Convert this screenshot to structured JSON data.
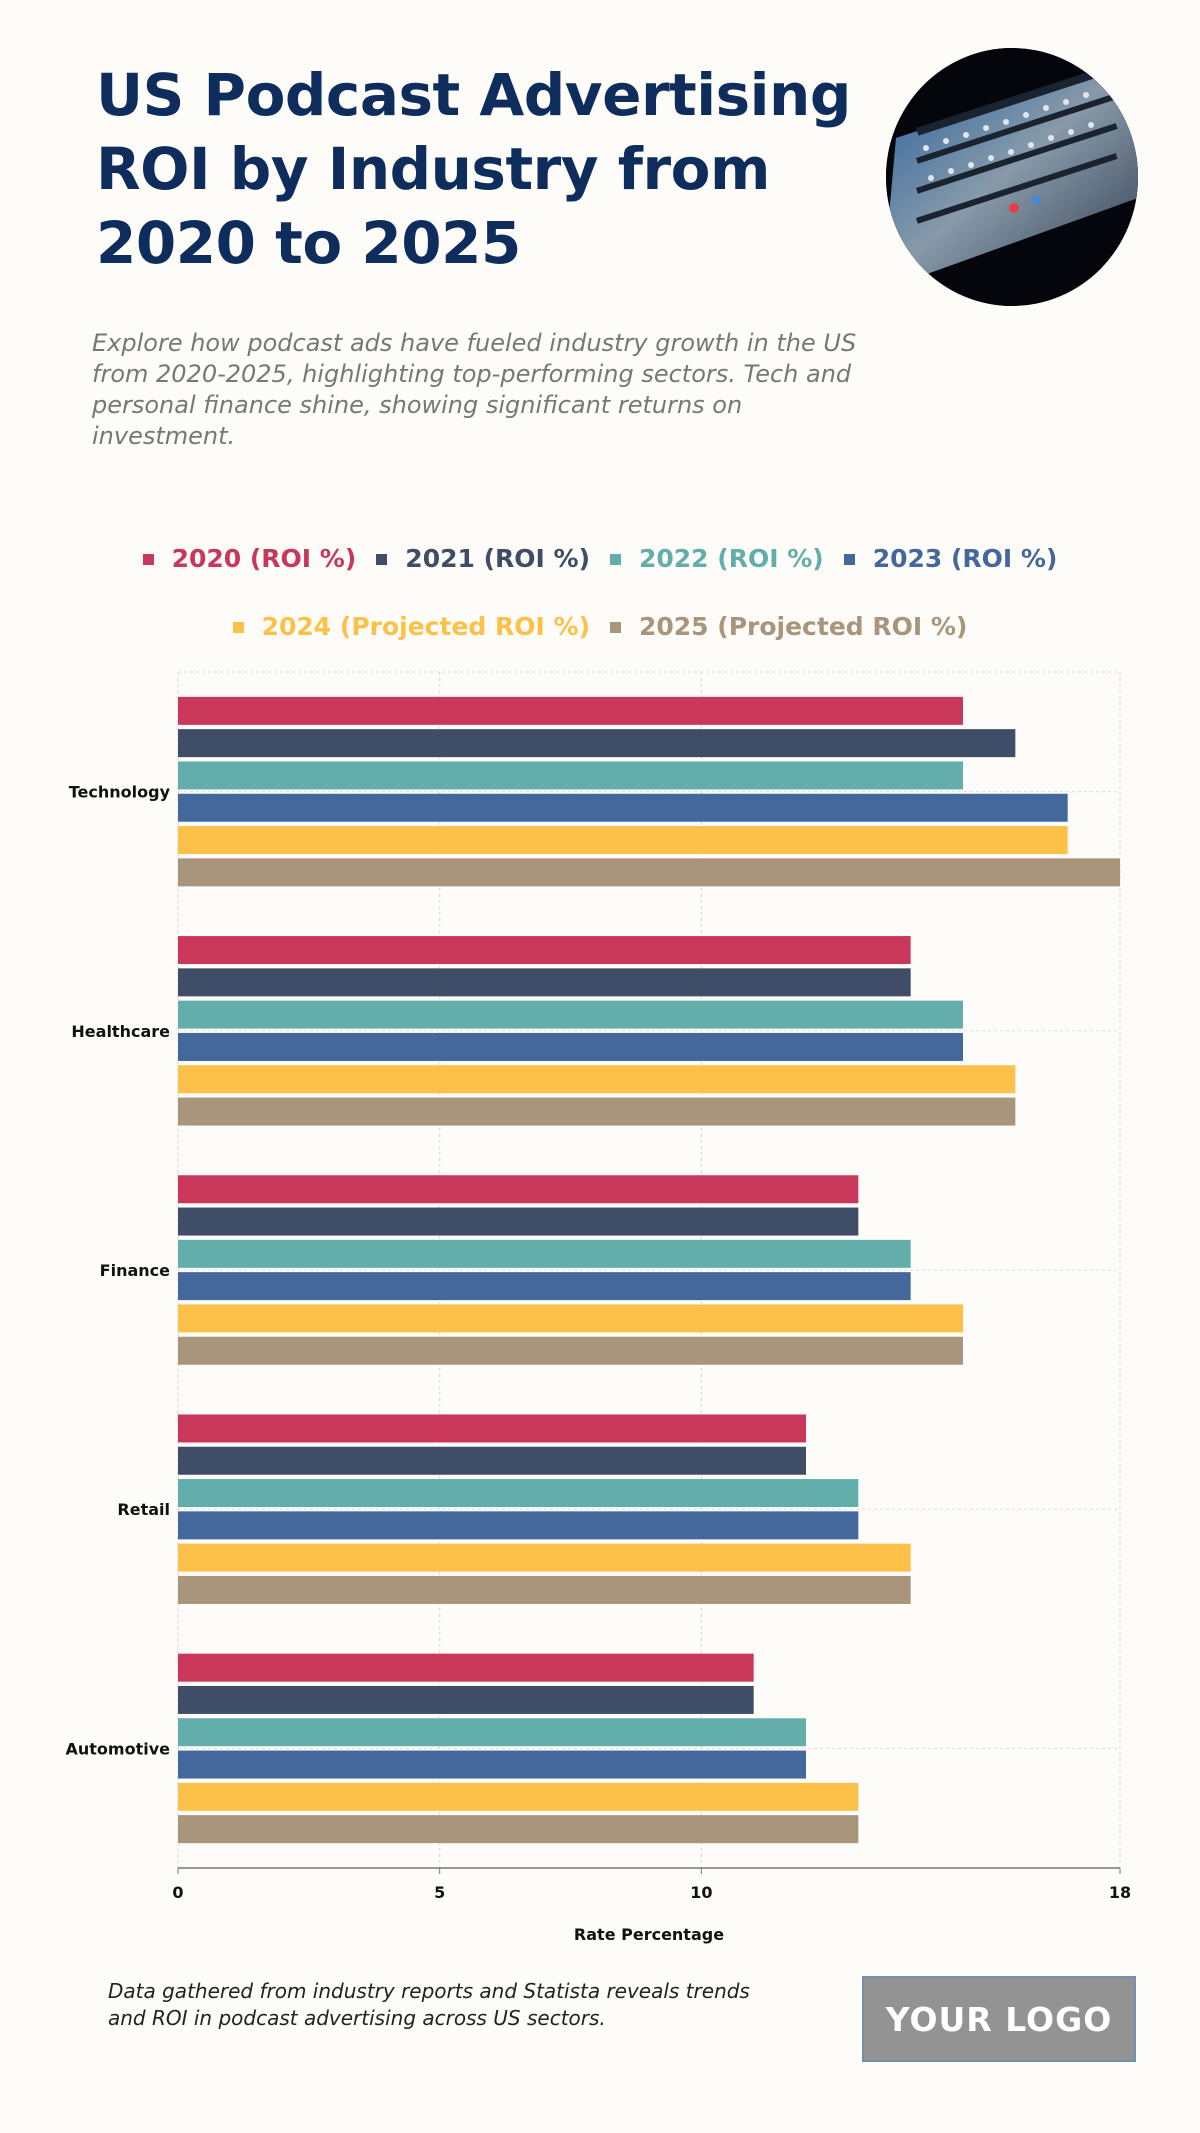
{
  "title": "US Podcast Advertising ROI by Industry from 2020 to 2025",
  "subtitle": "Explore how podcast ads have fueled industry growth in the US from 2020-2025, highlighting top-performing sectors. Tech and personal finance shine, showing significant returns on investment.",
  "hero_image": "audio-mixing-console",
  "footnote": "Data gathered from industry reports and Statista reveals trends and ROI in podcast advertising across US sectors.",
  "logo_text": "YOUR LOGO",
  "chart_data": {
    "type": "bar",
    "orientation": "horizontal",
    "categories": [
      "Technology",
      "Healthcare",
      "Finance",
      "Retail",
      "Automotive"
    ],
    "series": [
      {
        "name": "2020 (ROI %)",
        "color": "#c9385a",
        "values": [
          15,
          14,
          13,
          12,
          11
        ]
      },
      {
        "name": "2021 (ROI %)",
        "color": "#3f4d66",
        "values": [
          16,
          14,
          13,
          12,
          11
        ]
      },
      {
        "name": "2022 (ROI %)",
        "color": "#63aeab",
        "values": [
          15,
          15,
          14,
          13,
          12
        ]
      },
      {
        "name": "2023 (ROI %)",
        "color": "#44679c",
        "values": [
          17,
          15,
          14,
          13,
          12
        ]
      },
      {
        "name": "2024 (Projected ROI %)",
        "color": "#fdc14a",
        "values": [
          17,
          16,
          15,
          14,
          13
        ]
      },
      {
        "name": "2025 (Projected ROI %)",
        "color": "#a8957c",
        "values": [
          18,
          16,
          15,
          14,
          13
        ]
      }
    ],
    "xlabel": "Rate Percentage",
    "ylabel": "",
    "xlim": [
      0,
      18
    ],
    "xticks": [
      0,
      5,
      10,
      18
    ],
    "grid": true,
    "legend_position": "top"
  }
}
